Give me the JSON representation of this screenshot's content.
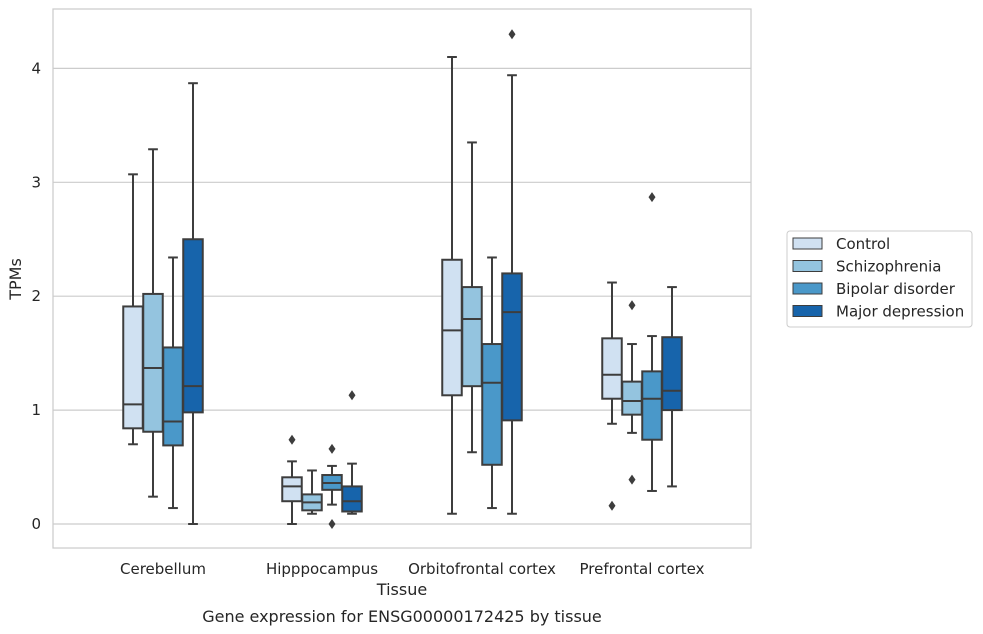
{
  "chart_data": {
    "type": "boxplot",
    "title": "",
    "caption": "Gene expression for ENSG00000172425 by tissue",
    "xlabel": "Tissue",
    "ylabel": "TPMs",
    "ylim": [
      -0.2,
      4.55
    ],
    "yticks": [
      0,
      1,
      2,
      3,
      4
    ],
    "grid": "horizontal",
    "legend_position": "right",
    "categories": [
      "Cerebellum",
      "Hipppocampus",
      "Orbitofrontal cortex",
      "Prefrontal cortex"
    ],
    "series": [
      {
        "name": "Control",
        "color": "#d0e1f2",
        "boxes": [
          {
            "whislo": 0.7,
            "q1": 0.84,
            "med": 1.05,
            "q3": 1.91,
            "whishi": 3.07,
            "fliers": []
          },
          {
            "whislo": 0.0,
            "q1": 0.2,
            "med": 0.33,
            "q3": 0.41,
            "whishi": 0.55,
            "fliers": [
              0.74
            ]
          },
          {
            "whislo": 0.09,
            "q1": 1.13,
            "med": 1.7,
            "q3": 2.32,
            "whishi": 4.1,
            "fliers": []
          },
          {
            "whislo": 0.88,
            "q1": 1.1,
            "med": 1.31,
            "q3": 1.63,
            "whishi": 2.12,
            "fliers": [
              0.16
            ]
          }
        ]
      },
      {
        "name": "Schizophrenia",
        "color": "#94c4df",
        "boxes": [
          {
            "whislo": 0.24,
            "q1": 0.81,
            "med": 1.37,
            "q3": 2.02,
            "whishi": 3.29,
            "fliers": []
          },
          {
            "whislo": 0.09,
            "q1": 0.12,
            "med": 0.19,
            "q3": 0.26,
            "whishi": 0.47,
            "fliers": []
          },
          {
            "whislo": 0.63,
            "q1": 1.21,
            "med": 1.8,
            "q3": 2.08,
            "whishi": 3.35,
            "fliers": []
          },
          {
            "whislo": 0.8,
            "q1": 0.96,
            "med": 1.08,
            "q3": 1.25,
            "whishi": 1.58,
            "fliers": [
              1.92,
              0.39
            ]
          }
        ]
      },
      {
        "name": "Bipolar disorder",
        "color": "#4a98c9",
        "boxes": [
          {
            "whislo": 0.14,
            "q1": 0.69,
            "med": 0.9,
            "q3": 1.55,
            "whishi": 2.34,
            "fliers": []
          },
          {
            "whislo": 0.17,
            "q1": 0.3,
            "med": 0.36,
            "q3": 0.43,
            "whishi": 0.51,
            "fliers": [
              0.66,
              0.0
            ]
          },
          {
            "whislo": 0.14,
            "q1": 0.52,
            "med": 1.24,
            "q3": 1.58,
            "whishi": 2.34,
            "fliers": []
          },
          {
            "whislo": 0.29,
            "q1": 0.74,
            "med": 1.1,
            "q3": 1.34,
            "whishi": 1.65,
            "fliers": [
              2.87
            ]
          }
        ]
      },
      {
        "name": "Major depression",
        "color": "#1764ab",
        "boxes": [
          {
            "whislo": 0.0,
            "q1": 0.98,
            "med": 1.21,
            "q3": 2.5,
            "whishi": 3.87,
            "fliers": []
          },
          {
            "whislo": 0.09,
            "q1": 0.11,
            "med": 0.2,
            "q3": 0.33,
            "whishi": 0.53,
            "fliers": [
              1.13
            ]
          },
          {
            "whislo": 0.09,
            "q1": 0.91,
            "med": 1.86,
            "q3": 2.2,
            "whishi": 3.94,
            "fliers": [
              4.3
            ]
          },
          {
            "whislo": 0.33,
            "q1": 1.0,
            "med": 1.17,
            "q3": 1.64,
            "whishi": 2.08,
            "fliers": []
          }
        ]
      }
    ]
  }
}
